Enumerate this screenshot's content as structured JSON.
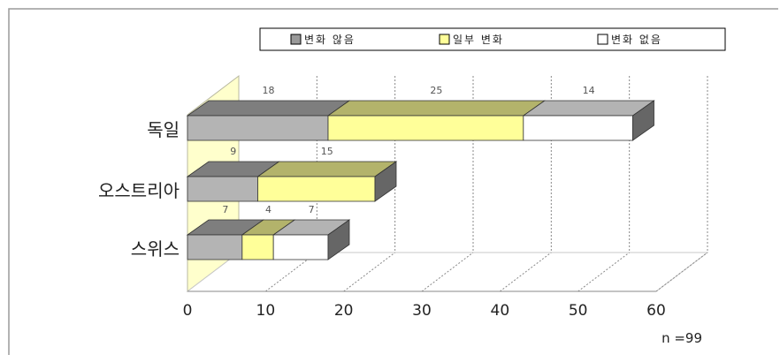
{
  "chart_data": {
    "type": "bar",
    "orientation": "horizontal",
    "stacked": true,
    "three_d": true,
    "categories": [
      "독일",
      "오스트리아",
      "스위스"
    ],
    "series": [
      {
        "name": "변화 않음",
        "values": [
          18,
          9,
          7
        ],
        "color": "#b4b4b4"
      },
      {
        "name": "일부 변화",
        "values": [
          25,
          15,
          4
        ],
        "color": "#ffff99"
      },
      {
        "name": "변화 없음",
        "values": [
          14,
          null,
          7
        ],
        "color": "#ffffff"
      }
    ],
    "data_labels": [
      [
        "18",
        "25",
        "14"
      ],
      [
        "9",
        "15",
        ""
      ],
      [
        "7",
        "4",
        "7"
      ]
    ],
    "xlim": [
      0,
      60
    ],
    "xticks": [
      "0",
      "10",
      "20",
      "30",
      "40",
      "50",
      "60"
    ],
    "grid": true,
    "legend_position": "top",
    "annotation": "n =99"
  }
}
